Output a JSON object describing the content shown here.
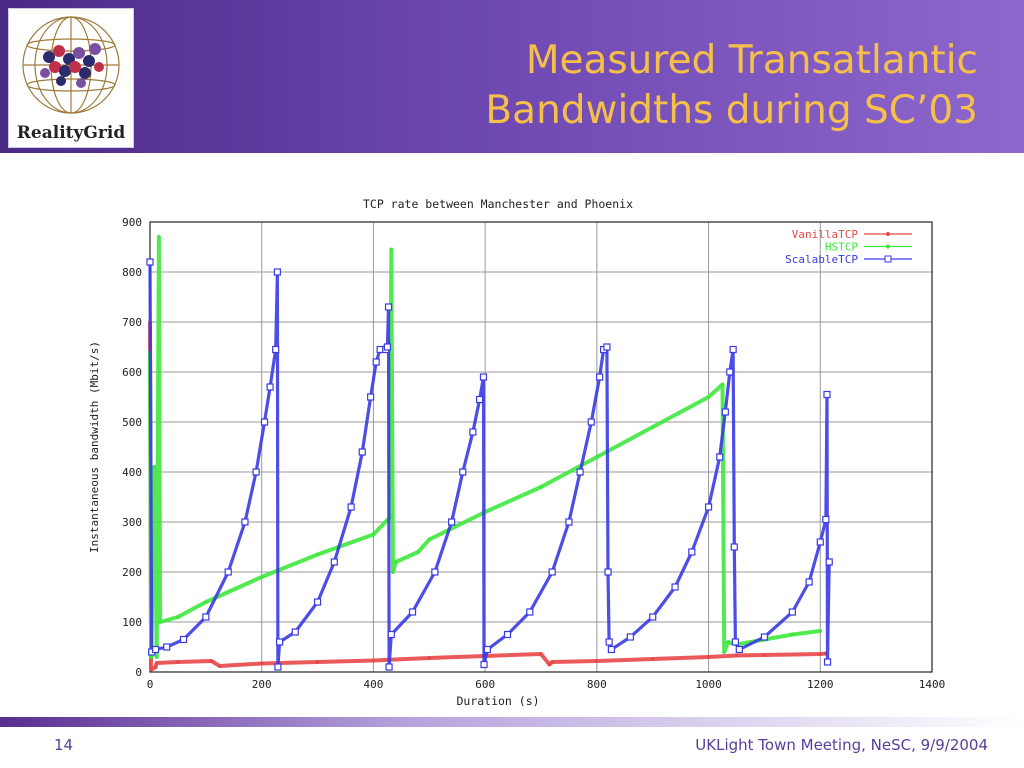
{
  "slide": {
    "title_line1": "Measured Transatlantic",
    "title_line2": "Bandwidths during SC’03",
    "logo_text": "RealityGrid",
    "slide_number": "14",
    "footer": "UKLight Town Meeting, NeSC, 9/9/2004"
  },
  "colors": {
    "title": "#f5c04a",
    "header_bg": "#6d47b0",
    "footer_text": "#5a3d9a"
  },
  "chart_data": {
    "type": "line",
    "title": "TCP rate between Manchester and Phoenix",
    "xlabel": "Duration (s)",
    "ylabel": "Instantaneous bandwidth (Mbit/s)",
    "xlim": [
      0,
      1400
    ],
    "ylim": [
      0,
      900
    ],
    "xticks": [
      0,
      200,
      400,
      600,
      800,
      1000,
      1200,
      1400
    ],
    "yticks": [
      0,
      100,
      200,
      300,
      400,
      500,
      600,
      700,
      800,
      900
    ],
    "grid": true,
    "legend_position": "top-right",
    "series": [
      {
        "name": "VanillaTCP",
        "color": "#e84848",
        "points": [
          [
            0,
            700
          ],
          [
            2,
            5
          ],
          [
            10,
            10
          ],
          [
            12,
            18
          ],
          [
            50,
            20
          ],
          [
            110,
            22
          ],
          [
            125,
            12
          ],
          [
            200,
            17
          ],
          [
            300,
            20
          ],
          [
            400,
            23
          ],
          [
            500,
            28
          ],
          [
            600,
            32
          ],
          [
            700,
            36
          ],
          [
            715,
            15
          ],
          [
            720,
            20
          ],
          [
            800,
            22
          ],
          [
            900,
            26
          ],
          [
            1000,
            30
          ],
          [
            1050,
            33
          ],
          [
            1100,
            34
          ],
          [
            1200,
            36
          ],
          [
            1210,
            37
          ]
        ]
      },
      {
        "name": "HSTCP",
        "color": "#3ee83e",
        "points": [
          [
            0,
            640
          ],
          [
            2,
            30
          ],
          [
            8,
            410
          ],
          [
            12,
            30
          ],
          [
            16,
            870
          ],
          [
            18,
            100
          ],
          [
            50,
            110
          ],
          [
            100,
            140
          ],
          [
            200,
            190
          ],
          [
            300,
            235
          ],
          [
            400,
            275
          ],
          [
            430,
            310
          ],
          [
            432,
            845
          ],
          [
            435,
            200
          ],
          [
            440,
            220
          ],
          [
            480,
            240
          ],
          [
            500,
            265
          ],
          [
            600,
            320
          ],
          [
            700,
            370
          ],
          [
            800,
            430
          ],
          [
            900,
            490
          ],
          [
            1000,
            550
          ],
          [
            1025,
            575
          ],
          [
            1028,
            40
          ],
          [
            1035,
            60
          ],
          [
            1050,
            55
          ],
          [
            1100,
            65
          ],
          [
            1150,
            75
          ],
          [
            1200,
            82
          ]
        ]
      },
      {
        "name": "ScalableTCP",
        "color": "#3a3ae6",
        "points": [
          [
            0,
            820
          ],
          [
            3,
            40
          ],
          [
            10,
            45
          ],
          [
            30,
            50
          ],
          [
            60,
            65
          ],
          [
            100,
            110
          ],
          [
            140,
            200
          ],
          [
            170,
            300
          ],
          [
            190,
            400
          ],
          [
            205,
            500
          ],
          [
            215,
            570
          ],
          [
            225,
            645
          ],
          [
            228,
            800
          ],
          [
            229,
            10
          ],
          [
            232,
            60
          ],
          [
            260,
            80
          ],
          [
            300,
            140
          ],
          [
            330,
            220
          ],
          [
            360,
            330
          ],
          [
            380,
            440
          ],
          [
            395,
            550
          ],
          [
            405,
            620
          ],
          [
            412,
            645
          ],
          [
            422,
            645
          ],
          [
            425,
            650
          ],
          [
            427,
            730
          ],
          [
            428,
            10
          ],
          [
            432,
            75
          ],
          [
            470,
            120
          ],
          [
            510,
            200
          ],
          [
            540,
            300
          ],
          [
            560,
            400
          ],
          [
            578,
            480
          ],
          [
            590,
            545
          ],
          [
            597,
            590
          ],
          [
            598,
            15
          ],
          [
            604,
            45
          ],
          [
            640,
            75
          ],
          [
            680,
            120
          ],
          [
            720,
            200
          ],
          [
            750,
            300
          ],
          [
            770,
            400
          ],
          [
            790,
            500
          ],
          [
            805,
            590
          ],
          [
            812,
            645
          ],
          [
            818,
            650
          ],
          [
            820,
            200
          ],
          [
            822,
            60
          ],
          [
            826,
            45
          ],
          [
            860,
            70
          ],
          [
            900,
            110
          ],
          [
            940,
            170
          ],
          [
            970,
            240
          ],
          [
            1000,
            330
          ],
          [
            1020,
            430
          ],
          [
            1030,
            520
          ],
          [
            1038,
            600
          ],
          [
            1044,
            645
          ],
          [
            1046,
            250
          ],
          [
            1048,
            60
          ],
          [
            1055,
            45
          ],
          [
            1100,
            70
          ],
          [
            1150,
            120
          ],
          [
            1180,
            180
          ],
          [
            1200,
            260
          ],
          [
            1210,
            305
          ],
          [
            1212,
            555
          ],
          [
            1213,
            20
          ],
          [
            1216,
            220
          ]
        ]
      }
    ]
  }
}
